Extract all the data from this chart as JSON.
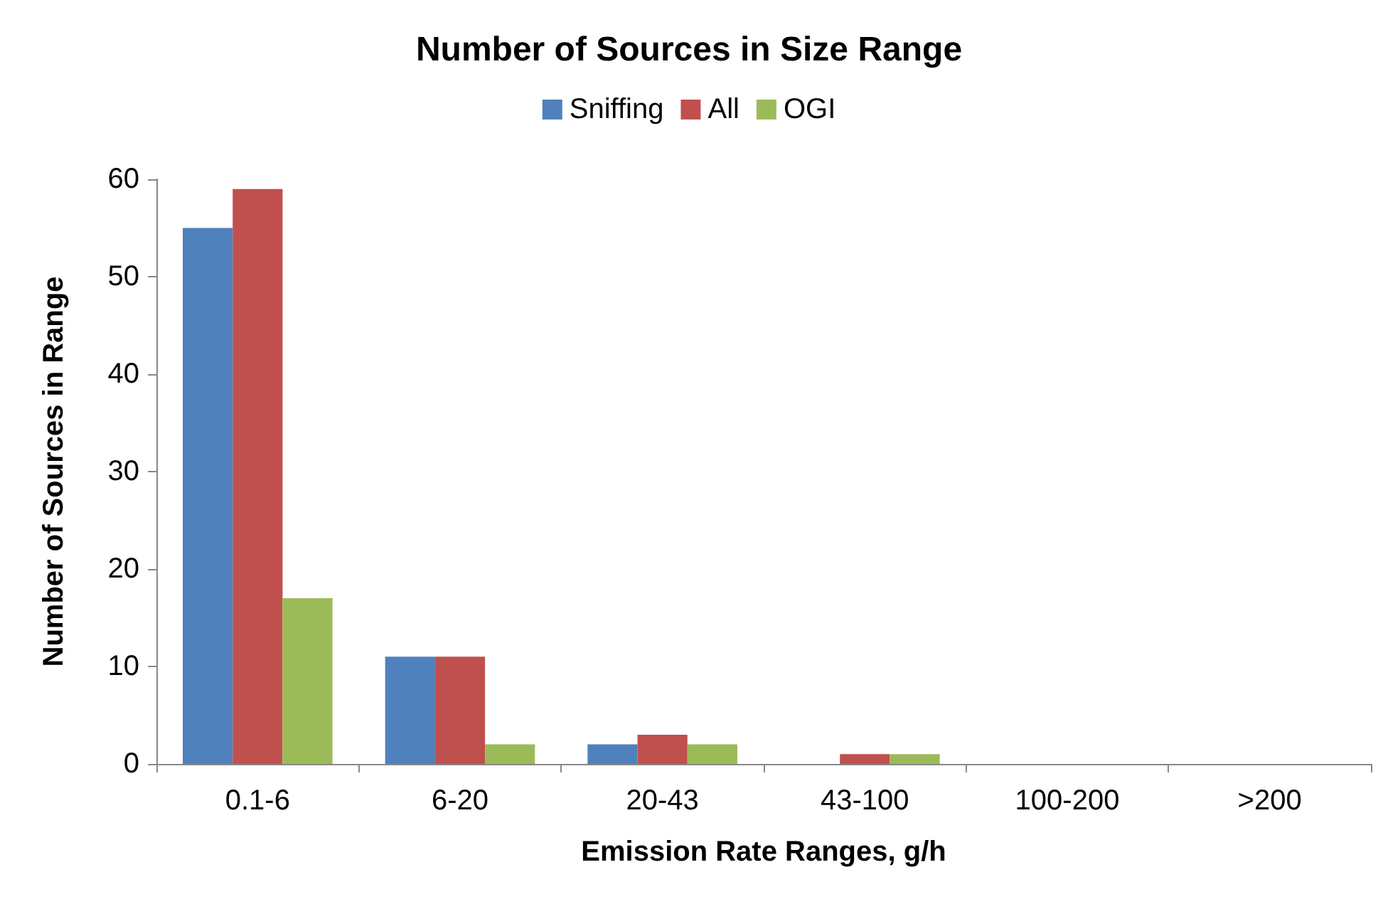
{
  "chart_data": {
    "type": "bar",
    "title": "Number of Sources in Size Range",
    "xlabel": "Emission Rate Ranges, g/h",
    "ylabel": "Number of Sources in Range",
    "categories": [
      "0.1-6",
      "6-20",
      "20-43",
      "43-100",
      "100-200",
      ">200"
    ],
    "series": [
      {
        "name": "Sniffing",
        "color": "#4f81bd",
        "values": [
          55,
          11,
          2,
          0,
          0,
          0
        ]
      },
      {
        "name": "All",
        "color": "#c0504d",
        "values": [
          59,
          11,
          3,
          1,
          0,
          0
        ]
      },
      {
        "name": "OGI",
        "color": "#9bbb59",
        "values": [
          17,
          2,
          2,
          1,
          0,
          0
        ]
      }
    ],
    "ylim": [
      0,
      60
    ],
    "yticks": [
      0,
      10,
      20,
      30,
      40,
      50,
      60
    ],
    "grid": false,
    "legend": "top"
  }
}
